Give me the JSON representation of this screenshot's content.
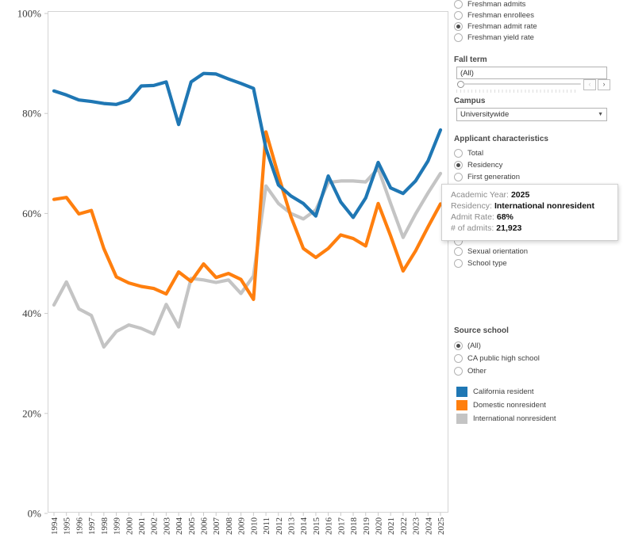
{
  "measure": {
    "options": [
      {
        "label": "Freshman admits",
        "selected": false
      },
      {
        "label": "Freshman enrollees",
        "selected": false
      },
      {
        "label": "Freshman admit rate",
        "selected": true
      },
      {
        "label": "Freshman yield rate",
        "selected": false
      }
    ]
  },
  "fall_term": {
    "header": "Fall term",
    "value": "(All)",
    "prev_icon": "‹",
    "next_icon": "›"
  },
  "campus": {
    "header": "Campus",
    "value": "Universitywide",
    "caret_icon": "▼"
  },
  "applicant": {
    "header": "Applicant characteristics",
    "options": [
      {
        "label": "Total",
        "selected": false
      },
      {
        "label": "Residency",
        "selected": true
      },
      {
        "label": "First generation",
        "selected": false
      },
      {
        "label": "Sexual orientation",
        "selected": false
      },
      {
        "label": "School type",
        "selected": false
      }
    ]
  },
  "source_school": {
    "header": "Source school",
    "options": [
      {
        "label": "(All)",
        "selected": true
      },
      {
        "label": "CA public high school",
        "selected": false
      },
      {
        "label": "Other",
        "selected": false
      }
    ]
  },
  "legend": [
    {
      "label": "California resident",
      "color": "#1f77b4"
    },
    {
      "label": "Domestic nonresident",
      "color": "#ff7f0e"
    },
    {
      "label": "International nonresident",
      "color": "#c4c4c4"
    }
  ],
  "tooltip": {
    "rows": [
      {
        "label": "Academic Year:",
        "value": "2025"
      },
      {
        "label": "Residency:",
        "value": "International nonresident"
      },
      {
        "label": "Admit Rate:",
        "value": "68%"
      },
      {
        "label": "# of admits:",
        "value": "21,923"
      }
    ]
  },
  "chart_data": {
    "type": "line",
    "title": "",
    "xlabel": "",
    "ylabel": "",
    "ylim": [
      0,
      100
    ],
    "yticks": [
      0,
      20,
      40,
      60,
      80,
      100
    ],
    "ytick_suffix": "%",
    "grid": false,
    "legend_position": "right",
    "x": [
      1994,
      1995,
      1996,
      1997,
      1998,
      1999,
      2000,
      2001,
      2002,
      2003,
      2004,
      2005,
      2006,
      2007,
      2008,
      2009,
      2010,
      2011,
      2012,
      2013,
      2014,
      2015,
      2016,
      2017,
      2018,
      2019,
      2020,
      2021,
      2022,
      2023,
      2024,
      2025
    ],
    "series": [
      {
        "name": "California resident",
        "color": "#1f77b4",
        "values": [
          84.5,
          83.7,
          82.7,
          82.4,
          82.0,
          81.8,
          82.6,
          85.5,
          85.6,
          86.3,
          77.8,
          86.3,
          88.0,
          87.9,
          86.9,
          86.0,
          85.0,
          73.0,
          65.7,
          63.5,
          62.0,
          59.5,
          67.5,
          62.3,
          59.2,
          63.1,
          70.2,
          65.1,
          64.0,
          66.5,
          70.5,
          76.7
        ]
      },
      {
        "name": "Domestic nonresident",
        "color": "#ff7f0e",
        "values": [
          62.8,
          63.2,
          59.9,
          60.6,
          53.0,
          47.3,
          46.1,
          45.4,
          45.0,
          43.9,
          48.3,
          46.4,
          49.9,
          47.2,
          48.0,
          46.8,
          42.8,
          76.3,
          67.6,
          59.4,
          53.0,
          51.2,
          53.0,
          55.7,
          55.0,
          53.5,
          62.0,
          55.5,
          48.5,
          52.5,
          57.3,
          61.9
        ]
      },
      {
        "name": "International nonresident",
        "color": "#c4c4c4",
        "values": [
          41.7,
          46.3,
          40.9,
          39.6,
          33.3,
          36.4,
          37.7,
          37.0,
          35.9,
          41.8,
          37.3,
          47.0,
          46.7,
          46.2,
          46.7,
          44.0,
          47.5,
          65.5,
          62.0,
          60.0,
          58.9,
          60.7,
          66.2,
          66.5,
          66.5,
          66.3,
          69.0,
          62.0,
          55.2,
          59.9,
          64.1,
          68.0
        ]
      }
    ]
  }
}
